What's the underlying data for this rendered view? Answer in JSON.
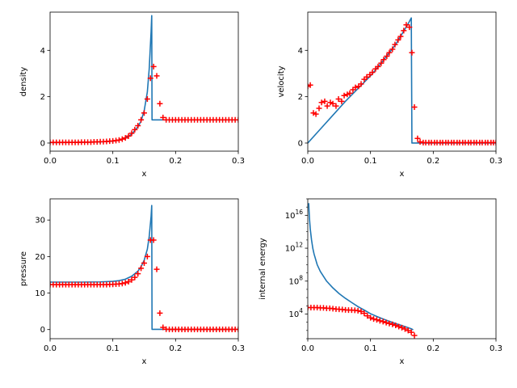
{
  "colors": {
    "exact_line": "#1f77b4",
    "numerical_markers": "#ff0000",
    "axes": "#000000",
    "background": "#ffffff"
  },
  "chart_data": [
    {
      "type": "line",
      "id": "density",
      "xlabel": "x",
      "ylabel": "density",
      "xlim": [
        0.0,
        0.3
      ],
      "ylim": [
        -0.35,
        5.65
      ],
      "yscale": "linear",
      "xticks": [
        0.0,
        0.1,
        0.2,
        0.3
      ],
      "xtick_labels": [
        "0.0",
        "0.1",
        "0.2",
        "0.3"
      ],
      "yticks": [
        0,
        2,
        4
      ],
      "ytick_labels": [
        "0",
        "2",
        "4"
      ],
      "grid": false,
      "legend": "none",
      "series": [
        {
          "kind": "line",
          "x": [
            0.0,
            0.05,
            0.08,
            0.1,
            0.11,
            0.12,
            0.13,
            0.14,
            0.145,
            0.15,
            0.155,
            0.158,
            0.161,
            0.162,
            0.1625,
            0.163,
            0.3
          ],
          "y": [
            0.02,
            0.03,
            0.05,
            0.08,
            0.13,
            0.22,
            0.38,
            0.7,
            0.95,
            1.4,
            2.2,
            3.2,
            4.8,
            5.5,
            1.0,
            1.0,
            1.0
          ]
        },
        {
          "kind": "scatter",
          "marker": "+",
          "x": [
            0.0,
            0.005,
            0.01,
            0.015,
            0.02,
            0.025,
            0.03,
            0.035,
            0.04,
            0.045,
            0.05,
            0.055,
            0.06,
            0.065,
            0.07,
            0.075,
            0.08,
            0.085,
            0.09,
            0.095,
            0.1,
            0.105,
            0.11,
            0.115,
            0.12,
            0.125,
            0.13,
            0.135,
            0.14,
            0.145,
            0.15,
            0.155,
            0.16,
            0.165,
            0.17,
            0.175,
            0.18,
            0.185,
            0.19,
            0.195,
            0.2,
            0.205,
            0.21,
            0.215,
            0.22,
            0.225,
            0.23,
            0.235,
            0.24,
            0.245,
            0.25,
            0.255,
            0.26,
            0.265,
            0.27,
            0.275,
            0.28,
            0.285,
            0.29,
            0.295,
            0.3
          ],
          "y": [
            0.03,
            0.03,
            0.03,
            0.03,
            0.03,
            0.03,
            0.03,
            0.03,
            0.03,
            0.03,
            0.04,
            0.04,
            0.04,
            0.04,
            0.05,
            0.05,
            0.06,
            0.06,
            0.07,
            0.08,
            0.09,
            0.11,
            0.13,
            0.17,
            0.22,
            0.3,
            0.42,
            0.58,
            0.75,
            1.0,
            1.3,
            1.9,
            2.8,
            3.3,
            2.9,
            1.7,
            1.1,
            1.0,
            1.0,
            1.0,
            1.0,
            1.0,
            1.0,
            1.0,
            1.0,
            1.0,
            1.0,
            1.0,
            1.0,
            1.0,
            1.0,
            1.0,
            1.0,
            1.0,
            1.0,
            1.0,
            1.0,
            1.0,
            1.0,
            1.0,
            1.0
          ]
        }
      ]
    },
    {
      "type": "line",
      "id": "velocity",
      "xlabel": "x",
      "ylabel": "velocity",
      "xlim": [
        0.0,
        0.3
      ],
      "ylim": [
        -0.35,
        5.65
      ],
      "yscale": "linear",
      "xticks": [
        0.0,
        0.1,
        0.2,
        0.3
      ],
      "xtick_labels": [
        "0.0",
        "0.1",
        "0.2",
        "0.3"
      ],
      "yticks": [
        0,
        2,
        4
      ],
      "ytick_labels": [
        "0",
        "2",
        "4"
      ],
      "grid": false,
      "legend": "none",
      "series": [
        {
          "kind": "line",
          "x": [
            0.0,
            0.02,
            0.04,
            0.06,
            0.08,
            0.1,
            0.12,
            0.14,
            0.15,
            0.16,
            0.165,
            0.166,
            0.3
          ],
          "y": [
            0.0,
            0.6,
            1.2,
            1.8,
            2.35,
            2.9,
            3.55,
            4.25,
            4.7,
            5.15,
            5.4,
            0.0,
            0.0
          ]
        },
        {
          "kind": "scatter",
          "marker": "+",
          "x": [
            0.0,
            0.004,
            0.009,
            0.013,
            0.018,
            0.022,
            0.027,
            0.031,
            0.036,
            0.04,
            0.045,
            0.049,
            0.054,
            0.058,
            0.063,
            0.067,
            0.072,
            0.076,
            0.081,
            0.085,
            0.09,
            0.094,
            0.099,
            0.103,
            0.108,
            0.112,
            0.117,
            0.121,
            0.126,
            0.13,
            0.135,
            0.139,
            0.144,
            0.148,
            0.153,
            0.157,
            0.162,
            0.166,
            0.17,
            0.175,
            0.179,
            0.184,
            0.188,
            0.193,
            0.197,
            0.202,
            0.206,
            0.211,
            0.215,
            0.22,
            0.224,
            0.229,
            0.233,
            0.238,
            0.242,
            0.247,
            0.251,
            0.256,
            0.26,
            0.265,
            0.269,
            0.274,
            0.278,
            0.283,
            0.287,
            0.292,
            0.296,
            0.3
          ],
          "y": [
            2.45,
            2.5,
            1.3,
            1.25,
            1.5,
            1.75,
            1.8,
            1.6,
            1.75,
            1.7,
            1.6,
            1.9,
            1.8,
            2.05,
            2.1,
            2.15,
            2.3,
            2.4,
            2.45,
            2.55,
            2.75,
            2.85,
            2.95,
            3.05,
            3.2,
            3.3,
            3.45,
            3.6,
            3.75,
            3.9,
            4.05,
            4.25,
            4.45,
            4.6,
            4.85,
            5.1,
            5.0,
            3.9,
            1.55,
            0.2,
            0.05,
            0.02,
            0.02,
            0.02,
            0.02,
            0.02,
            0.02,
            0.02,
            0.02,
            0.02,
            0.02,
            0.02,
            0.02,
            0.02,
            0.02,
            0.02,
            0.02,
            0.02,
            0.02,
            0.02,
            0.02,
            0.02,
            0.02,
            0.02,
            0.02,
            0.02,
            0.02,
            0.02
          ]
        }
      ]
    },
    {
      "type": "line",
      "id": "pressure",
      "xlabel": "x",
      "ylabel": "pressure",
      "xlim": [
        0.0,
        0.3
      ],
      "ylim": [
        -2.5,
        35.8
      ],
      "yscale": "linear",
      "xticks": [
        0.0,
        0.1,
        0.2,
        0.3
      ],
      "xtick_labels": [
        "0.0",
        "0.1",
        "0.2",
        "0.3"
      ],
      "yticks": [
        0,
        10,
        20,
        30
      ],
      "ytick_labels": [
        "0",
        "10",
        "20",
        "30"
      ],
      "grid": false,
      "legend": "none",
      "series": [
        {
          "kind": "line",
          "x": [
            0.0,
            0.05,
            0.08,
            0.1,
            0.11,
            0.12,
            0.13,
            0.14,
            0.145,
            0.15,
            0.155,
            0.158,
            0.161,
            0.162,
            0.1625,
            0.163,
            0.3
          ],
          "y": [
            13.0,
            13.0,
            13.05,
            13.2,
            13.4,
            13.8,
            14.6,
            16.0,
            17.2,
            19.0,
            22.0,
            25.5,
            31.0,
            34.0,
            0.05,
            0.05,
            0.05
          ]
        },
        {
          "kind": "scatter",
          "marker": "+",
          "x": [
            0.0,
            0.005,
            0.01,
            0.015,
            0.02,
            0.025,
            0.03,
            0.035,
            0.04,
            0.045,
            0.05,
            0.055,
            0.06,
            0.065,
            0.07,
            0.075,
            0.08,
            0.085,
            0.09,
            0.095,
            0.1,
            0.105,
            0.11,
            0.115,
            0.12,
            0.125,
            0.13,
            0.135,
            0.14,
            0.145,
            0.15,
            0.155,
            0.16,
            0.165,
            0.17,
            0.175,
            0.18,
            0.185,
            0.19,
            0.195,
            0.2,
            0.205,
            0.21,
            0.215,
            0.22,
            0.225,
            0.23,
            0.235,
            0.24,
            0.245,
            0.25,
            0.255,
            0.26,
            0.265,
            0.27,
            0.275,
            0.28,
            0.285,
            0.29,
            0.295,
            0.3
          ],
          "y": [
            12.3,
            12.3,
            12.3,
            12.3,
            12.3,
            12.3,
            12.3,
            12.3,
            12.3,
            12.3,
            12.3,
            12.3,
            12.3,
            12.3,
            12.3,
            12.3,
            12.3,
            12.3,
            12.3,
            12.35,
            12.4,
            12.45,
            12.5,
            12.6,
            12.8,
            13.1,
            13.6,
            14.3,
            15.3,
            16.8,
            18.2,
            20.0,
            24.5,
            24.5,
            16.5,
            4.5,
            0.6,
            0.1,
            0.05,
            0.05,
            0.05,
            0.05,
            0.05,
            0.05,
            0.05,
            0.05,
            0.05,
            0.05,
            0.05,
            0.05,
            0.05,
            0.05,
            0.05,
            0.05,
            0.05,
            0.05,
            0.05,
            0.05,
            0.05,
            0.05,
            0.05
          ]
        }
      ]
    },
    {
      "type": "line",
      "id": "internal-energy",
      "xlabel": "x",
      "ylabel": "internal energy",
      "xlim": [
        0.0,
        0.3
      ],
      "ylim": [
        10.0,
        1e+18
      ],
      "yscale": "log",
      "xticks": [
        0.0,
        0.1,
        0.2,
        0.3
      ],
      "xtick_labels": [
        "0.0",
        "0.1",
        "0.2",
        "0.3"
      ],
      "yticks": [
        10000.0,
        100000000.0,
        1000000000000.0,
        1e+16
      ],
      "ytick_labels": [
        {
          "base": "10",
          "exp": "4"
        },
        {
          "base": "10",
          "exp": "8"
        },
        {
          "base": "10",
          "exp": "12"
        },
        {
          "base": "10",
          "exp": "16"
        }
      ],
      "grid": false,
      "legend": "none",
      "series": [
        {
          "kind": "line",
          "x": [
            0.0015,
            0.002,
            0.003,
            0.004,
            0.006,
            0.008,
            0.01,
            0.015,
            0.02,
            0.03,
            0.04,
            0.05,
            0.06,
            0.07,
            0.08,
            0.09,
            0.1,
            0.11,
            0.12,
            0.13,
            0.14,
            0.15,
            0.16,
            0.165,
            0.168
          ],
          "y": [
            3e+17,
            4e+16,
            2000000000000000.0,
            200000000000000.0,
            10000000000000.0,
            1000000000000.0,
            200000000000.0,
            10000000000.0,
            1500000000.0,
            100000000.0,
            15000000.0,
            3000000.0,
            800000.0,
            250000.0,
            80000.0,
            30000.0,
            11000.0,
            5000.0,
            2500.0,
            1300.0,
            700,
            400,
            220,
            160,
            120
          ]
        },
        {
          "kind": "scatter",
          "marker": "+",
          "x": [
            0.0,
            0.005,
            0.01,
            0.015,
            0.02,
            0.025,
            0.03,
            0.035,
            0.04,
            0.045,
            0.05,
            0.055,
            0.06,
            0.065,
            0.07,
            0.075,
            0.08,
            0.085,
            0.09,
            0.095,
            0.1,
            0.105,
            0.11,
            0.115,
            0.12,
            0.125,
            0.13,
            0.135,
            0.14,
            0.145,
            0.15,
            0.155,
            0.16,
            0.165,
            0.17
          ],
          "y": [
            60000.0,
            60000.0,
            60000.0,
            60000.0,
            55000.0,
            55000.0,
            50000.0,
            50000.0,
            45000.0,
            40000.0,
            38000.0,
            35000.0,
            32000.0,
            30000.0,
            30000.0,
            28000.0,
            25000.0,
            20000.0,
            12000.0,
            6000.0,
            3500.0,
            2500.0,
            2000.0,
            1500.0,
            1200.0,
            900,
            700,
            550,
            420,
            300,
            220,
            150,
            100,
            60,
            25
          ]
        }
      ]
    }
  ]
}
